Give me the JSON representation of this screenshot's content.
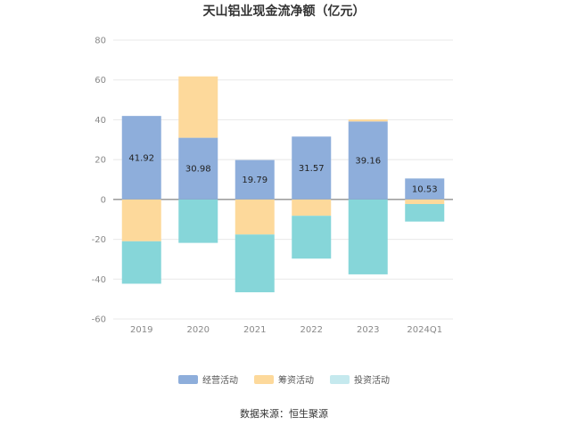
{
  "chart_data": {
    "type": "bar",
    "stacked": true,
    "title": "天山铝业现金流净额（亿元）",
    "categories": [
      "2019",
      "2020",
      "2021",
      "2022",
      "2023",
      "2024Q1"
    ],
    "series": [
      {
        "name": "经营活动",
        "color": "#8eaedb",
        "values": [
          41.92,
          30.98,
          19.79,
          31.57,
          39.16,
          10.53
        ]
      },
      {
        "name": "筹资活动",
        "color": "#fdd99b",
        "values": [
          -21.0,
          30.8,
          -17.6,
          -8.2,
          1.0,
          -2.3
        ]
      },
      {
        "name": "投资活动",
        "color": "#86d6d9",
        "values": [
          -21.3,
          -21.8,
          -29.0,
          -21.5,
          -37.6,
          -8.8
        ]
      }
    ],
    "data_labels": [
      "41.92",
      "30.98",
      "19.79",
      "31.57",
      "39.16",
      "10.53"
    ],
    "ylim": [
      -60,
      80
    ],
    "yticks": [
      -60,
      -40,
      -20,
      0,
      20,
      40,
      60,
      80
    ],
    "grid": true,
    "legend_position": "bottom"
  },
  "legend": {
    "items": [
      {
        "label": "经营活动",
        "color": "#8eaedb"
      },
      {
        "label": "筹资活动",
        "color": "#fdd99b"
      },
      {
        "label": "投资活动",
        "color": "#c5e9ee"
      }
    ]
  },
  "source_text": "数据来源：恒生聚源"
}
